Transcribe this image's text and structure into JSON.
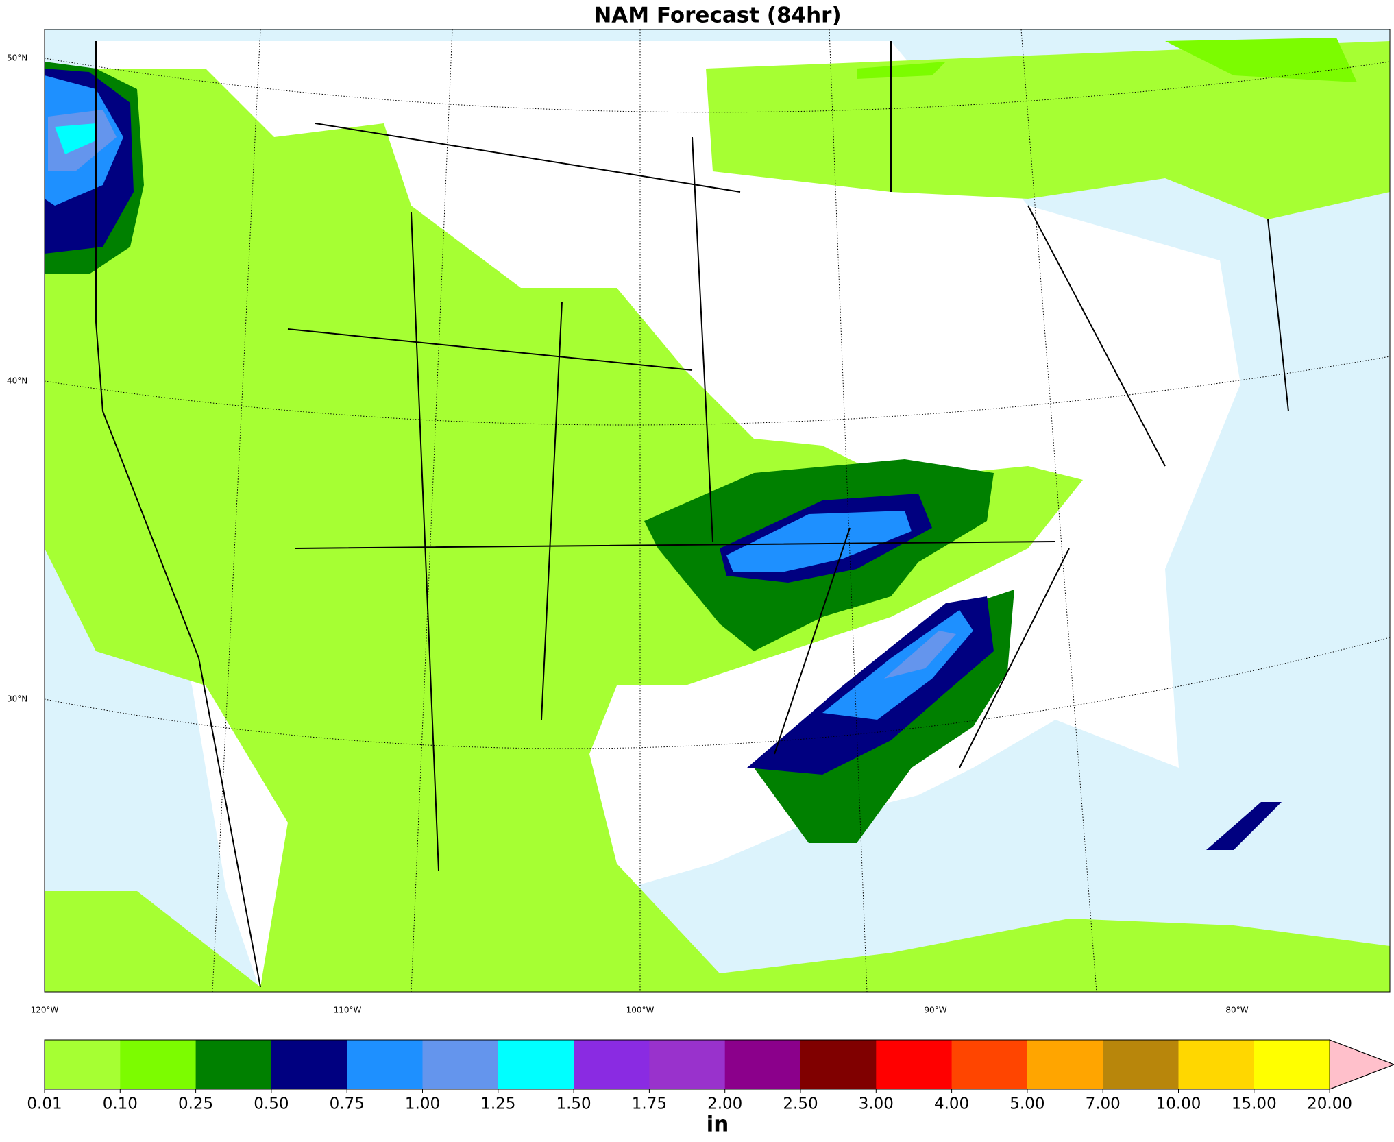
{
  "title": "NAM Forecast (84hr)",
  "lat_labels": [
    "50°N",
    "40°N",
    "30°N"
  ],
  "lon_labels": [
    "120°W",
    "110°W",
    "100°W",
    "90°W",
    "80°W"
  ],
  "colorbar": {
    "bounds": [
      0.01,
      {
        "value": 0.1,
        "label": "0.10"
      },
      0.25,
      {
        "value": 0.5,
        "label": "0.50"
      },
      0.75,
      {
        "value": 1,
        "label": "1.00"
      },
      1.25,
      {
        "value": 1.5,
        "label": "1.50"
      },
      1.75,
      {
        "value": 2,
        "label": "2.00"
      },
      {
        "value": 2.5,
        "label": "2.50"
      },
      {
        "value": 3,
        "label": "3.00"
      },
      {
        "value": 4,
        "label": "4.00"
      },
      {
        "value": 5,
        "label": "5.00"
      },
      {
        "value": 7,
        "label": "7.00"
      },
      {
        "value": 10,
        "label": "10.00"
      },
      {
        "value": 15,
        "label": "15.00"
      },
      {
        "value": 20,
        "label": "20.00"
      }
    ],
    "colors": [
      "#a6ff33",
      "#7cfc00",
      "#008000",
      "#000080",
      "#1e90ff",
      "#6495ed",
      "#00ffff",
      "#8a2be2",
      "#9932cc",
      "#8b008b",
      "#800000",
      "#ff0000",
      "#ff4500",
      "#ffa500",
      "#b8860b",
      "#ffd700",
      "#ffff00"
    ],
    "extend_color": "#ffc0cb",
    "unit": "in"
  }
}
